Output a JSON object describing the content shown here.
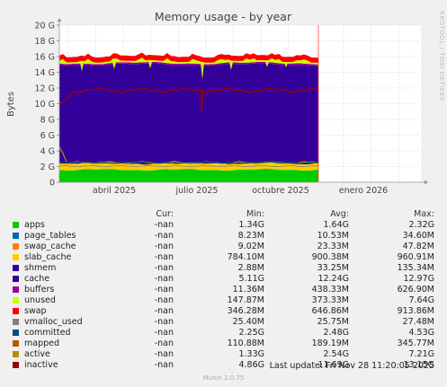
{
  "title": "Memory usage - by year",
  "ylabel": "Bytes",
  "side_label": "RRDTOOL / TOBI OETIKER",
  "footer": "Munin 2.0.75",
  "last_update": "Last update: Fri Nov 28 11:20:05 2025",
  "legend_header": {
    "cur": "Cur:",
    "min": "Min:",
    "avg": "Avg:",
    "max": "Max:"
  },
  "legend": [
    {
      "name": "apps",
      "color": "#00cc00",
      "cur": "-nan",
      "min": "1.34G",
      "avg": "1.64G",
      "max": "2.32G"
    },
    {
      "name": "page_tables",
      "color": "#0066b3",
      "cur": "-nan",
      "min": "8.23M",
      "avg": "10.53M",
      "max": "34.60M"
    },
    {
      "name": "swap_cache",
      "color": "#ff8000",
      "cur": "-nan",
      "min": "9.02M",
      "avg": "23.33M",
      "max": "47.82M"
    },
    {
      "name": "slab_cache",
      "color": "#ffcc00",
      "cur": "-nan",
      "min": "784.10M",
      "avg": "900.38M",
      "max": "960.91M"
    },
    {
      "name": "shmem",
      "color": "#330099",
      "cur": "-nan",
      "min": "2.88M",
      "avg": "33.25M",
      "max": "135.34M"
    },
    {
      "name": "cache",
      "color": "#330099",
      "cur": "-nan",
      "min": "5.11G",
      "avg": "12.24G",
      "max": "12.97G"
    },
    {
      "name": "buffers",
      "color": "#990099",
      "cur": "-nan",
      "min": "11.36M",
      "avg": "438.33M",
      "max": "626.90M"
    },
    {
      "name": "unused",
      "color": "#ccff00",
      "cur": "-nan",
      "min": "147.87M",
      "avg": "373.33M",
      "max": "7.64G"
    },
    {
      "name": "swap",
      "color": "#ff0000",
      "cur": "-nan",
      "min": "346.28M",
      "avg": "646.86M",
      "max": "913.86M"
    },
    {
      "name": "vmalloc_used",
      "color": "#808080",
      "cur": "-nan",
      "min": "25.40M",
      "avg": "25.75M",
      "max": "27.48M"
    },
    {
      "name": "committed",
      "color": "#004d80",
      "cur": "-nan",
      "min": "2.25G",
      "avg": "2.48G",
      "max": "4.53G"
    },
    {
      "name": "mapped",
      "color": "#b35900",
      "cur": "-nan",
      "min": "110.88M",
      "avg": "189.19M",
      "max": "345.77M"
    },
    {
      "name": "active",
      "color": "#b38f00",
      "cur": "-nan",
      "min": "1.33G",
      "avg": "2.54G",
      "max": "7.21G"
    },
    {
      "name": "inactive",
      "color": "#990000",
      "cur": "-nan",
      "min": "4.86G",
      "avg": "11.69G",
      "max": "13.15G"
    }
  ],
  "chart_data": {
    "type": "area",
    "title": "Memory usage - by year",
    "ylabel": "Bytes",
    "y_ticks": [
      "0",
      "2 G",
      "4 G",
      "6 G",
      "8 G",
      "10 G",
      "12 G",
      "14 G",
      "16 G",
      "18 G",
      "20 G"
    ],
    "ylim_gb": [
      0,
      20
    ],
    "x_ticks": [
      "abril 2025",
      "julio 2025",
      "octubre 2025",
      "enero 2026"
    ],
    "grid": true,
    "note": "Data present roughly from mid-February 2025 to end of November 2025; a current-time marker line at late November 2025.",
    "stack_approx_gb": {
      "apps": 1.6,
      "slab_cache": 0.9,
      "cache": 12.2,
      "buffers": 0.45,
      "unused": 0.35,
      "swap": 0.65
    },
    "lines_approx_gb": {
      "inactive": 11.7,
      "active": 2.5,
      "committed": 2.5
    }
  }
}
